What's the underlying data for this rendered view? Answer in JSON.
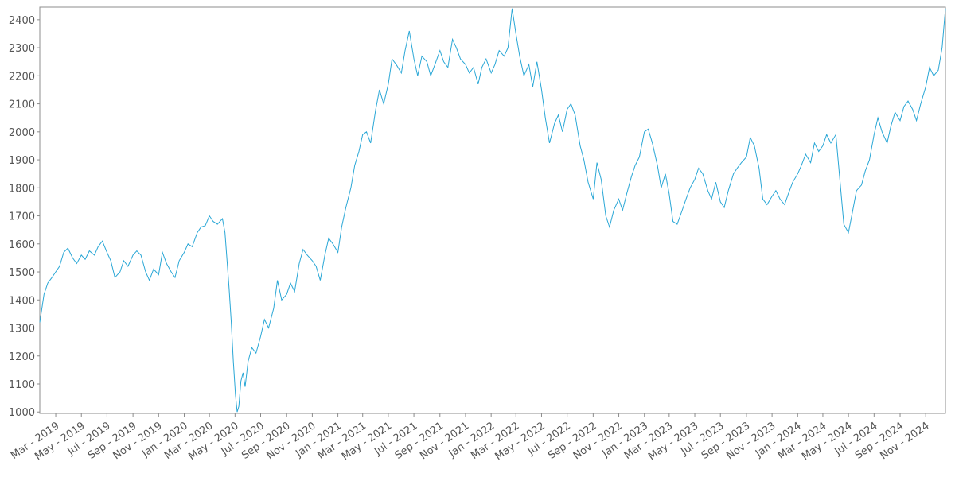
{
  "chart_data": {
    "type": "line",
    "title": "",
    "xlabel": "",
    "ylabel": "",
    "ylim": [
      995,
      2445
    ],
    "xlim": [
      "2019-01-22",
      "2024-12-18"
    ],
    "grid": false,
    "legend": "none",
    "line_color": "#2aa7d6",
    "y_ticks": [
      1000,
      1100,
      1200,
      1300,
      1400,
      1500,
      1600,
      1700,
      1800,
      1900,
      2000,
      2100,
      2200,
      2300,
      2400
    ],
    "x_ticks": [
      {
        "date": "2019-03-01",
        "label": "Mar - 2019"
      },
      {
        "date": "2019-05-01",
        "label": "May - 2019"
      },
      {
        "date": "2019-07-01",
        "label": "Jul - 2019"
      },
      {
        "date": "2019-09-01",
        "label": "Sep - 2019"
      },
      {
        "date": "2019-11-01",
        "label": "Nov - 2019"
      },
      {
        "date": "2020-01-01",
        "label": "Jan - 2020"
      },
      {
        "date": "2020-03-01",
        "label": "Mar - 2020"
      },
      {
        "date": "2020-05-01",
        "label": "May - 2020"
      },
      {
        "date": "2020-07-01",
        "label": "Jul - 2020"
      },
      {
        "date": "2020-09-01",
        "label": "Sep - 2020"
      },
      {
        "date": "2020-11-01",
        "label": "Nov - 2020"
      },
      {
        "date": "2021-01-01",
        "label": "Jan - 2021"
      },
      {
        "date": "2021-03-01",
        "label": "Mar - 2021"
      },
      {
        "date": "2021-05-01",
        "label": "May - 2021"
      },
      {
        "date": "2021-07-01",
        "label": "Jul - 2021"
      },
      {
        "date": "2021-09-01",
        "label": "Sep - 2021"
      },
      {
        "date": "2021-11-01",
        "label": "Nov - 2021"
      },
      {
        "date": "2022-01-01",
        "label": "Jan - 2022"
      },
      {
        "date": "2022-03-01",
        "label": "Mar - 2022"
      },
      {
        "date": "2022-05-01",
        "label": "May - 2022"
      },
      {
        "date": "2022-07-01",
        "label": "Jul - 2022"
      },
      {
        "date": "2022-09-01",
        "label": "Sep - 2022"
      },
      {
        "date": "2022-11-01",
        "label": "Nov - 2022"
      },
      {
        "date": "2023-01-01",
        "label": "Jan - 2023"
      },
      {
        "date": "2023-03-01",
        "label": "Mar - 2023"
      },
      {
        "date": "2023-05-01",
        "label": "May - 2023"
      },
      {
        "date": "2023-07-01",
        "label": "Jul - 2023"
      },
      {
        "date": "2023-09-01",
        "label": "Sep - 2023"
      },
      {
        "date": "2023-11-01",
        "label": "Nov - 2023"
      },
      {
        "date": "2024-01-01",
        "label": "Jan - 2024"
      },
      {
        "date": "2024-03-01",
        "label": "Mar - 2024"
      },
      {
        "date": "2024-05-01",
        "label": "May - 2024"
      },
      {
        "date": "2024-07-01",
        "label": "Jul - 2024"
      },
      {
        "date": "2024-09-01",
        "label": "Sep - 2024"
      },
      {
        "date": "2024-11-01",
        "label": "Nov - 2024"
      }
    ],
    "series": [
      {
        "points": [
          [
            "2019-01-22",
            1320
          ],
          [
            "2019-02-01",
            1420
          ],
          [
            "2019-02-10",
            1460
          ],
          [
            "2019-02-20",
            1480
          ],
          [
            "2019-03-01",
            1500
          ],
          [
            "2019-03-10",
            1520
          ],
          [
            "2019-03-20",
            1570
          ],
          [
            "2019-03-30",
            1585
          ],
          [
            "2019-04-10",
            1550
          ],
          [
            "2019-04-20",
            1530
          ],
          [
            "2019-05-01",
            1560
          ],
          [
            "2019-05-10",
            1545
          ],
          [
            "2019-05-20",
            1575
          ],
          [
            "2019-06-01",
            1560
          ],
          [
            "2019-06-10",
            1590
          ],
          [
            "2019-06-20",
            1610
          ],
          [
            "2019-07-01",
            1570
          ],
          [
            "2019-07-10",
            1540
          ],
          [
            "2019-07-20",
            1480
          ],
          [
            "2019-08-01",
            1500
          ],
          [
            "2019-08-10",
            1540
          ],
          [
            "2019-08-20",
            1520
          ],
          [
            "2019-09-01",
            1560
          ],
          [
            "2019-09-10",
            1575
          ],
          [
            "2019-09-20",
            1560
          ],
          [
            "2019-10-01",
            1500
          ],
          [
            "2019-10-10",
            1470
          ],
          [
            "2019-10-20",
            1510
          ],
          [
            "2019-11-01",
            1490
          ],
          [
            "2019-11-10",
            1570
          ],
          [
            "2019-11-20",
            1530
          ],
          [
            "2019-12-01",
            1500
          ],
          [
            "2019-12-10",
            1480
          ],
          [
            "2019-12-20",
            1540
          ],
          [
            "2020-01-01",
            1570
          ],
          [
            "2020-01-10",
            1600
          ],
          [
            "2020-01-20",
            1590
          ],
          [
            "2020-02-01",
            1640
          ],
          [
            "2020-02-10",
            1660
          ],
          [
            "2020-02-20",
            1665
          ],
          [
            "2020-03-01",
            1700
          ],
          [
            "2020-03-10",
            1680
          ],
          [
            "2020-03-20",
            1670
          ],
          [
            "2020-04-01",
            1690
          ],
          [
            "2020-04-07",
            1640
          ],
          [
            "2020-04-12",
            1540
          ],
          [
            "2020-04-17",
            1440
          ],
          [
            "2020-04-22",
            1320
          ],
          [
            "2020-04-27",
            1180
          ],
          [
            "2020-05-02",
            1060
          ],
          [
            "2020-05-06",
            1000
          ],
          [
            "2020-05-10",
            1020
          ],
          [
            "2020-05-15",
            1110
          ],
          [
            "2020-05-20",
            1140
          ],
          [
            "2020-05-25",
            1090
          ],
          [
            "2020-06-01",
            1180
          ],
          [
            "2020-06-10",
            1230
          ],
          [
            "2020-06-20",
            1210
          ],
          [
            "2020-07-01",
            1270
          ],
          [
            "2020-07-10",
            1330
          ],
          [
            "2020-07-20",
            1300
          ],
          [
            "2020-08-01",
            1370
          ],
          [
            "2020-08-10",
            1470
          ],
          [
            "2020-08-20",
            1400
          ],
          [
            "2020-09-01",
            1420
          ],
          [
            "2020-09-10",
            1460
          ],
          [
            "2020-09-20",
            1430
          ],
          [
            "2020-10-01",
            1530
          ],
          [
            "2020-10-10",
            1580
          ],
          [
            "2020-10-20",
            1560
          ],
          [
            "2020-11-01",
            1540
          ],
          [
            "2020-11-10",
            1520
          ],
          [
            "2020-11-20",
            1470
          ],
          [
            "2020-12-01",
            1560
          ],
          [
            "2020-12-10",
            1620
          ],
          [
            "2020-12-20",
            1600
          ],
          [
            "2021-01-01",
            1570
          ],
          [
            "2021-01-10",
            1660
          ],
          [
            "2021-01-20",
            1730
          ],
          [
            "2021-02-01",
            1800
          ],
          [
            "2021-02-10",
            1880
          ],
          [
            "2021-02-20",
            1930
          ],
          [
            "2021-03-01",
            1990
          ],
          [
            "2021-03-10",
            2000
          ],
          [
            "2021-03-20",
            1960
          ],
          [
            "2021-04-01",
            2080
          ],
          [
            "2021-04-10",
            2150
          ],
          [
            "2021-04-20",
            2100
          ],
          [
            "2021-05-01",
            2170
          ],
          [
            "2021-05-10",
            2260
          ],
          [
            "2021-05-20",
            2240
          ],
          [
            "2021-06-01",
            2210
          ],
          [
            "2021-06-10",
            2290
          ],
          [
            "2021-06-20",
            2360
          ],
          [
            "2021-07-01",
            2260
          ],
          [
            "2021-07-10",
            2200
          ],
          [
            "2021-07-20",
            2270
          ],
          [
            "2021-08-01",
            2250
          ],
          [
            "2021-08-10",
            2200
          ],
          [
            "2021-08-20",
            2240
          ],
          [
            "2021-09-01",
            2290
          ],
          [
            "2021-09-10",
            2250
          ],
          [
            "2021-09-20",
            2230
          ],
          [
            "2021-10-01",
            2330
          ],
          [
            "2021-10-10",
            2300
          ],
          [
            "2021-10-20",
            2260
          ],
          [
            "2021-11-01",
            2240
          ],
          [
            "2021-11-10",
            2210
          ],
          [
            "2021-11-20",
            2230
          ],
          [
            "2021-12-01",
            2170
          ],
          [
            "2021-12-10",
            2230
          ],
          [
            "2021-12-20",
            2260
          ],
          [
            "2022-01-01",
            2210
          ],
          [
            "2022-01-10",
            2240
          ],
          [
            "2022-01-20",
            2290
          ],
          [
            "2022-02-01",
            2270
          ],
          [
            "2022-02-10",
            2300
          ],
          [
            "2022-02-20",
            2440
          ],
          [
            "2022-03-01",
            2350
          ],
          [
            "2022-03-10",
            2270
          ],
          [
            "2022-03-20",
            2200
          ],
          [
            "2022-04-01",
            2240
          ],
          [
            "2022-04-10",
            2160
          ],
          [
            "2022-04-20",
            2250
          ],
          [
            "2022-05-01",
            2150
          ],
          [
            "2022-05-10",
            2050
          ],
          [
            "2022-05-20",
            1960
          ],
          [
            "2022-06-01",
            2030
          ],
          [
            "2022-06-10",
            2060
          ],
          [
            "2022-06-20",
            2000
          ],
          [
            "2022-07-01",
            2080
          ],
          [
            "2022-07-10",
            2100
          ],
          [
            "2022-07-20",
            2060
          ],
          [
            "2022-08-01",
            1950
          ],
          [
            "2022-08-10",
            1900
          ],
          [
            "2022-08-20",
            1820
          ],
          [
            "2022-09-01",
            1760
          ],
          [
            "2022-09-10",
            1890
          ],
          [
            "2022-09-20",
            1830
          ],
          [
            "2022-10-01",
            1700
          ],
          [
            "2022-10-10",
            1660
          ],
          [
            "2022-10-20",
            1720
          ],
          [
            "2022-11-01",
            1760
          ],
          [
            "2022-11-10",
            1720
          ],
          [
            "2022-11-20",
            1780
          ],
          [
            "2022-12-01",
            1840
          ],
          [
            "2022-12-10",
            1880
          ],
          [
            "2022-12-20",
            1910
          ],
          [
            "2023-01-01",
            2000
          ],
          [
            "2023-01-10",
            2010
          ],
          [
            "2023-01-20",
            1960
          ],
          [
            "2023-02-01",
            1880
          ],
          [
            "2023-02-10",
            1800
          ],
          [
            "2023-02-20",
            1850
          ],
          [
            "2023-03-01",
            1780
          ],
          [
            "2023-03-10",
            1680
          ],
          [
            "2023-03-20",
            1670
          ],
          [
            "2023-04-01",
            1720
          ],
          [
            "2023-04-10",
            1760
          ],
          [
            "2023-04-20",
            1800
          ],
          [
            "2023-05-01",
            1830
          ],
          [
            "2023-05-10",
            1870
          ],
          [
            "2023-05-20",
            1850
          ],
          [
            "2023-06-01",
            1790
          ],
          [
            "2023-06-10",
            1760
          ],
          [
            "2023-06-20",
            1820
          ],
          [
            "2023-07-01",
            1750
          ],
          [
            "2023-07-10",
            1730
          ],
          [
            "2023-07-20",
            1790
          ],
          [
            "2023-08-01",
            1850
          ],
          [
            "2023-08-10",
            1870
          ],
          [
            "2023-08-20",
            1890
          ],
          [
            "2023-09-01",
            1910
          ],
          [
            "2023-09-10",
            1980
          ],
          [
            "2023-09-20",
            1950
          ],
          [
            "2023-10-01",
            1870
          ],
          [
            "2023-10-10",
            1760
          ],
          [
            "2023-10-20",
            1740
          ],
          [
            "2023-11-01",
            1770
          ],
          [
            "2023-11-10",
            1790
          ],
          [
            "2023-11-20",
            1760
          ],
          [
            "2023-12-01",
            1740
          ],
          [
            "2023-12-10",
            1780
          ],
          [
            "2023-12-20",
            1820
          ],
          [
            "2024-01-01",
            1850
          ],
          [
            "2024-01-10",
            1880
          ],
          [
            "2024-01-20",
            1920
          ],
          [
            "2024-02-01",
            1890
          ],
          [
            "2024-02-10",
            1960
          ],
          [
            "2024-02-20",
            1930
          ],
          [
            "2024-03-01",
            1950
          ],
          [
            "2024-03-10",
            1990
          ],
          [
            "2024-03-20",
            1960
          ],
          [
            "2024-04-01",
            1990
          ],
          [
            "2024-04-10",
            1840
          ],
          [
            "2024-04-20",
            1670
          ],
          [
            "2024-05-01",
            1640
          ],
          [
            "2024-05-10",
            1710
          ],
          [
            "2024-05-20",
            1790
          ],
          [
            "2024-06-01",
            1810
          ],
          [
            "2024-06-10",
            1860
          ],
          [
            "2024-06-20",
            1900
          ],
          [
            "2024-07-01",
            1990
          ],
          [
            "2024-07-10",
            2050
          ],
          [
            "2024-07-20",
            2000
          ],
          [
            "2024-08-01",
            1960
          ],
          [
            "2024-08-10",
            2020
          ],
          [
            "2024-08-20",
            2070
          ],
          [
            "2024-09-01",
            2040
          ],
          [
            "2024-09-10",
            2090
          ],
          [
            "2024-09-20",
            2110
          ],
          [
            "2024-10-01",
            2080
          ],
          [
            "2024-10-10",
            2040
          ],
          [
            "2024-10-20",
            2100
          ],
          [
            "2024-11-01",
            2160
          ],
          [
            "2024-11-10",
            2230
          ],
          [
            "2024-11-20",
            2200
          ],
          [
            "2024-12-01",
            2220
          ],
          [
            "2024-12-10",
            2300
          ],
          [
            "2024-12-18",
            2440
          ]
        ]
      }
    ]
  }
}
